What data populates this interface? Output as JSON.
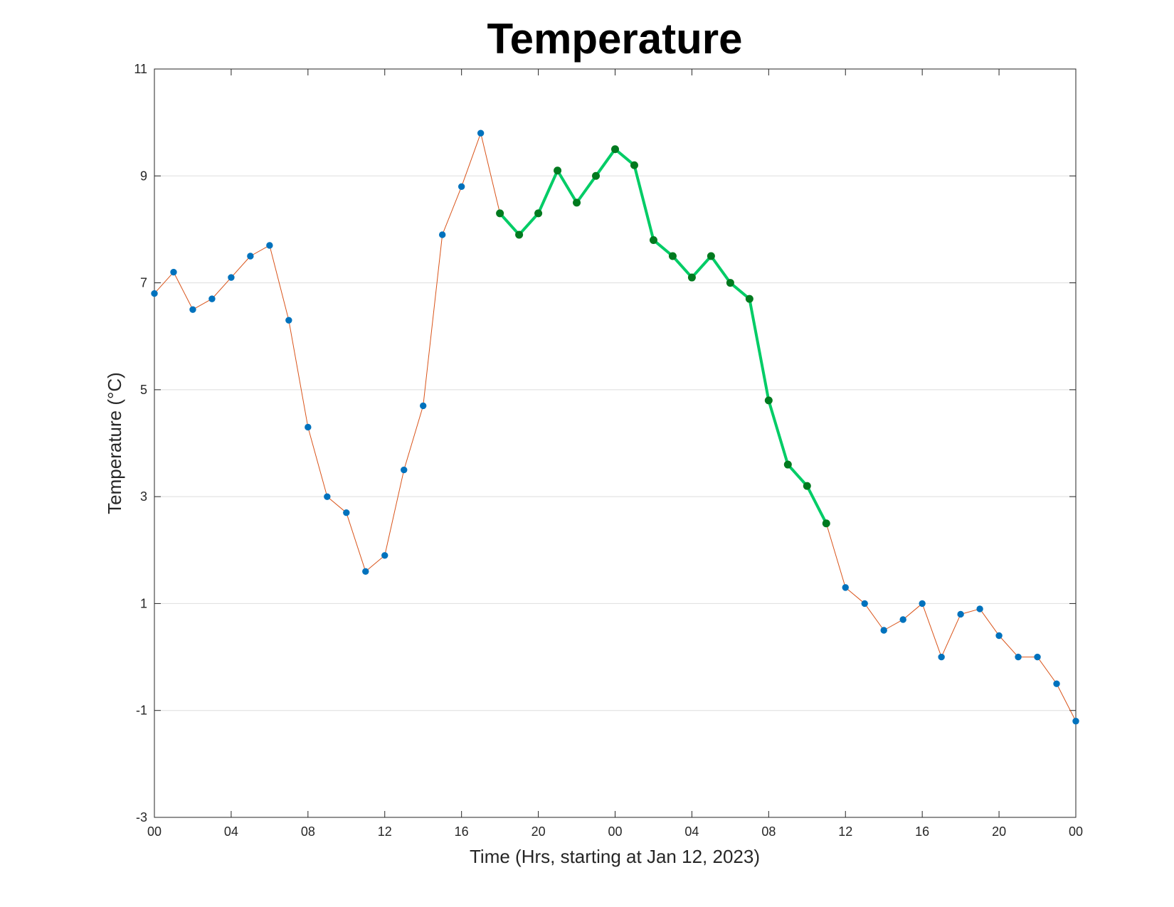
{
  "chart_data": {
    "type": "line",
    "title": "Temperature",
    "xlabel": "Time (Hrs, starting at Jan 12, 2023)",
    "ylabel": "Temperature (°C)",
    "ylim": [
      -3,
      11
    ],
    "yticks": [
      -3,
      -1,
      1,
      3,
      5,
      7,
      9,
      11
    ],
    "xlim": [
      0,
      48
    ],
    "x_unit": "hours",
    "xtick_values": [
      0,
      4,
      8,
      12,
      16,
      20,
      24,
      28,
      32,
      36,
      40,
      44,
      48
    ],
    "xtick_labels": [
      "00",
      "04",
      "08",
      "12",
      "16",
      "20",
      "00",
      "04",
      "08",
      "12",
      "16",
      "20",
      "00"
    ],
    "grid": "horizontal",
    "legend": "none",
    "series": [
      {
        "x": [
          0,
          1,
          2,
          3,
          4,
          5,
          6,
          7,
          8,
          9,
          10,
          11,
          12,
          13,
          14,
          15,
          16,
          17,
          18,
          19,
          20,
          21,
          22,
          23,
          24,
          25,
          26,
          27,
          28,
          29,
          30,
          31,
          32,
          33,
          34,
          35,
          36,
          37,
          38,
          39,
          40,
          41,
          42,
          43,
          44,
          45,
          46,
          47,
          48
        ],
        "values": [
          6.8,
          7.2,
          6.5,
          6.7,
          7.1,
          7.5,
          7.7,
          6.3,
          4.3,
          3.0,
          2.7,
          1.6,
          1.9,
          3.5,
          4.7,
          7.9,
          8.8,
          9.8,
          8.3,
          7.9,
          8.3,
          9.1,
          8.5,
          9.0,
          9.5,
          9.2,
          7.8,
          7.5,
          7.1,
          7.5,
          7.0,
          6.7,
          4.8,
          3.6,
          3.2,
          2.5,
          1.3,
          1.0,
          0.5,
          0.7,
          1.0,
          0.0,
          0.8,
          0.9,
          0.4,
          0.0,
          0.0,
          -0.5,
          -1.2
        ],
        "line_color": "#D95319",
        "marker_color": "#0072BD",
        "line_width": 1
      },
      {
        "x": [
          18,
          19,
          20,
          21,
          22,
          23,
          24,
          25,
          26,
          27,
          28,
          29,
          30,
          31,
          32,
          33,
          34,
          35
        ],
        "values": [
          8.3,
          7.9,
          8.3,
          9.1,
          8.5,
          9.0,
          9.5,
          9.2,
          7.8,
          7.5,
          7.1,
          7.5,
          7.0,
          6.7,
          4.8,
          3.6,
          3.2,
          2.5
        ],
        "line_color": "#00CC66",
        "marker_color": "#007A1F",
        "line_width": 4
      }
    ]
  }
}
